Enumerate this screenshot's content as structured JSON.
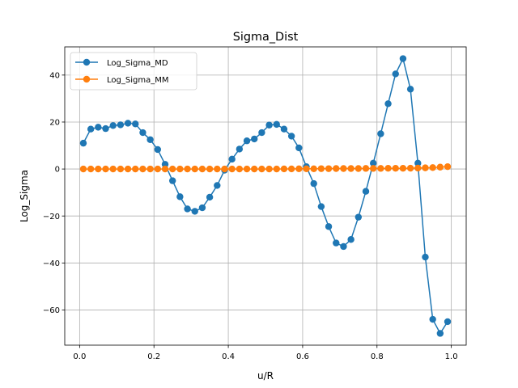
{
  "chart_data": {
    "type": "line",
    "title": "Sigma_Dist",
    "xlabel": "u/R",
    "ylabel": "Log_Sigma",
    "xlim": [
      -0.04,
      1.04
    ],
    "ylim": [
      -75,
      52
    ],
    "xticks": [
      0.0,
      0.2,
      0.4,
      0.6,
      0.8,
      1.0
    ],
    "xtick_labels": [
      "0.0",
      "0.2",
      "0.4",
      "0.6",
      "0.8",
      "1.0"
    ],
    "yticks": [
      -60,
      -40,
      -20,
      0,
      20,
      40
    ],
    "ytick_labels": [
      "−60",
      "−40",
      "−20",
      "0",
      "20",
      "40"
    ],
    "grid": true,
    "legend_position": "top-left",
    "x": [
      0.01,
      0.03,
      0.05,
      0.07,
      0.09,
      0.11,
      0.13,
      0.15,
      0.17,
      0.19,
      0.21,
      0.23,
      0.25,
      0.27,
      0.29,
      0.31,
      0.33,
      0.35,
      0.37,
      0.39,
      0.41,
      0.43,
      0.45,
      0.47,
      0.49,
      0.51,
      0.53,
      0.55,
      0.57,
      0.59,
      0.61,
      0.63,
      0.65,
      0.67,
      0.69,
      0.71,
      0.73,
      0.75,
      0.77,
      0.79,
      0.81,
      0.83,
      0.85,
      0.87,
      0.89,
      0.91,
      0.93,
      0.95,
      0.97,
      0.99
    ],
    "series": [
      {
        "name": "Log_Sigma_MD",
        "color": "#1f77b4",
        "values": [
          11.0,
          17.0,
          17.8,
          17.2,
          18.5,
          18.8,
          19.5,
          19.2,
          15.5,
          12.5,
          8.3,
          2.0,
          -5.0,
          -11.8,
          -17.0,
          -18.0,
          -16.5,
          -12.0,
          -7.0,
          -0.5,
          4.2,
          8.5,
          12.0,
          12.8,
          15.5,
          18.7,
          19.0,
          17.0,
          14.0,
          9.0,
          1.0,
          -6.2,
          -16.0,
          -24.5,
          -31.5,
          -33.0,
          -30.0,
          -20.5,
          -9.5,
          2.5,
          15.0,
          27.8,
          40.5,
          47.0,
          34.0,
          2.5,
          -37.5,
          -64.0,
          -70.0,
          -65.0
        ]
      },
      {
        "name": "Log_Sigma_MM",
        "color": "#ff7f0e",
        "values": [
          0.0,
          0.0,
          0.0,
          0.0,
          0.0,
          0.0,
          0.0,
          0.0,
          0.0,
          0.0,
          0.0,
          0.0,
          0.0,
          0.0,
          0.0,
          0.0,
          0.0,
          0.0,
          0.0,
          0.0,
          0.0,
          0.0,
          0.0,
          0.0,
          0.0,
          0.0,
          0.0,
          0.05,
          0.05,
          0.1,
          0.1,
          0.1,
          0.15,
          0.15,
          0.2,
          0.2,
          0.2,
          0.2,
          0.25,
          0.25,
          0.25,
          0.3,
          0.3,
          0.3,
          0.35,
          0.4,
          0.5,
          0.6,
          0.8,
          1.0
        ]
      }
    ]
  }
}
